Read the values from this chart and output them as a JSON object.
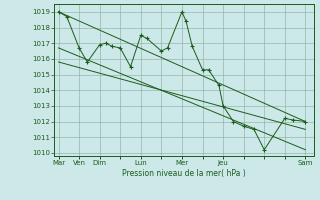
{
  "background_color": "#cde8e8",
  "grid_color": "#88aa99",
  "line_color": "#1a5c1a",
  "marker_color": "#1a5c1a",
  "xlabel_text": "Pression niveau de la mer( hPa )",
  "ylim": [
    1009.8,
    1019.5
  ],
  "yticks": [
    1010,
    1011,
    1012,
    1013,
    1014,
    1015,
    1016,
    1017,
    1018,
    1019
  ],
  "xtick_labels": [
    "Mar",
    "Ven",
    "Dim",
    "",
    "Lun",
    "",
    "Mer",
    "",
    "Jeu",
    "",
    "",
    "",
    "Sam"
  ],
  "xtick_positions": [
    0,
    1,
    2,
    3,
    4,
    5,
    6,
    7,
    8,
    9,
    10,
    11,
    12
  ],
  "xlim": [
    -0.2,
    12.4
  ],
  "series1": {
    "x": [
      0,
      0.4,
      1,
      1.4,
      2,
      2.3,
      2.6,
      3,
      3.5,
      4,
      4.3,
      5,
      5.3,
      6,
      6.2,
      6.5,
      7,
      7.3,
      7.8,
      8,
      8.5,
      9,
      9.5,
      10,
      11,
      11.4,
      12
    ],
    "y": [
      1019.0,
      1018.7,
      1016.7,
      1015.8,
      1016.9,
      1017.0,
      1016.8,
      1016.7,
      1015.5,
      1017.5,
      1017.3,
      1016.5,
      1016.7,
      1019.0,
      1018.4,
      1016.8,
      1015.3,
      1015.3,
      1014.3,
      1013.0,
      1012.0,
      1011.7,
      1011.5,
      1010.2,
      1012.2,
      1012.1,
      1012.0
    ]
  },
  "series2": {
    "x": [
      0,
      12
    ],
    "y": [
      1019.0,
      1012.0
    ]
  },
  "series3": {
    "x": [
      0,
      12
    ],
    "y": [
      1016.7,
      1010.2
    ]
  },
  "series4": {
    "x": [
      0,
      12
    ],
    "y": [
      1015.8,
      1011.5
    ]
  }
}
